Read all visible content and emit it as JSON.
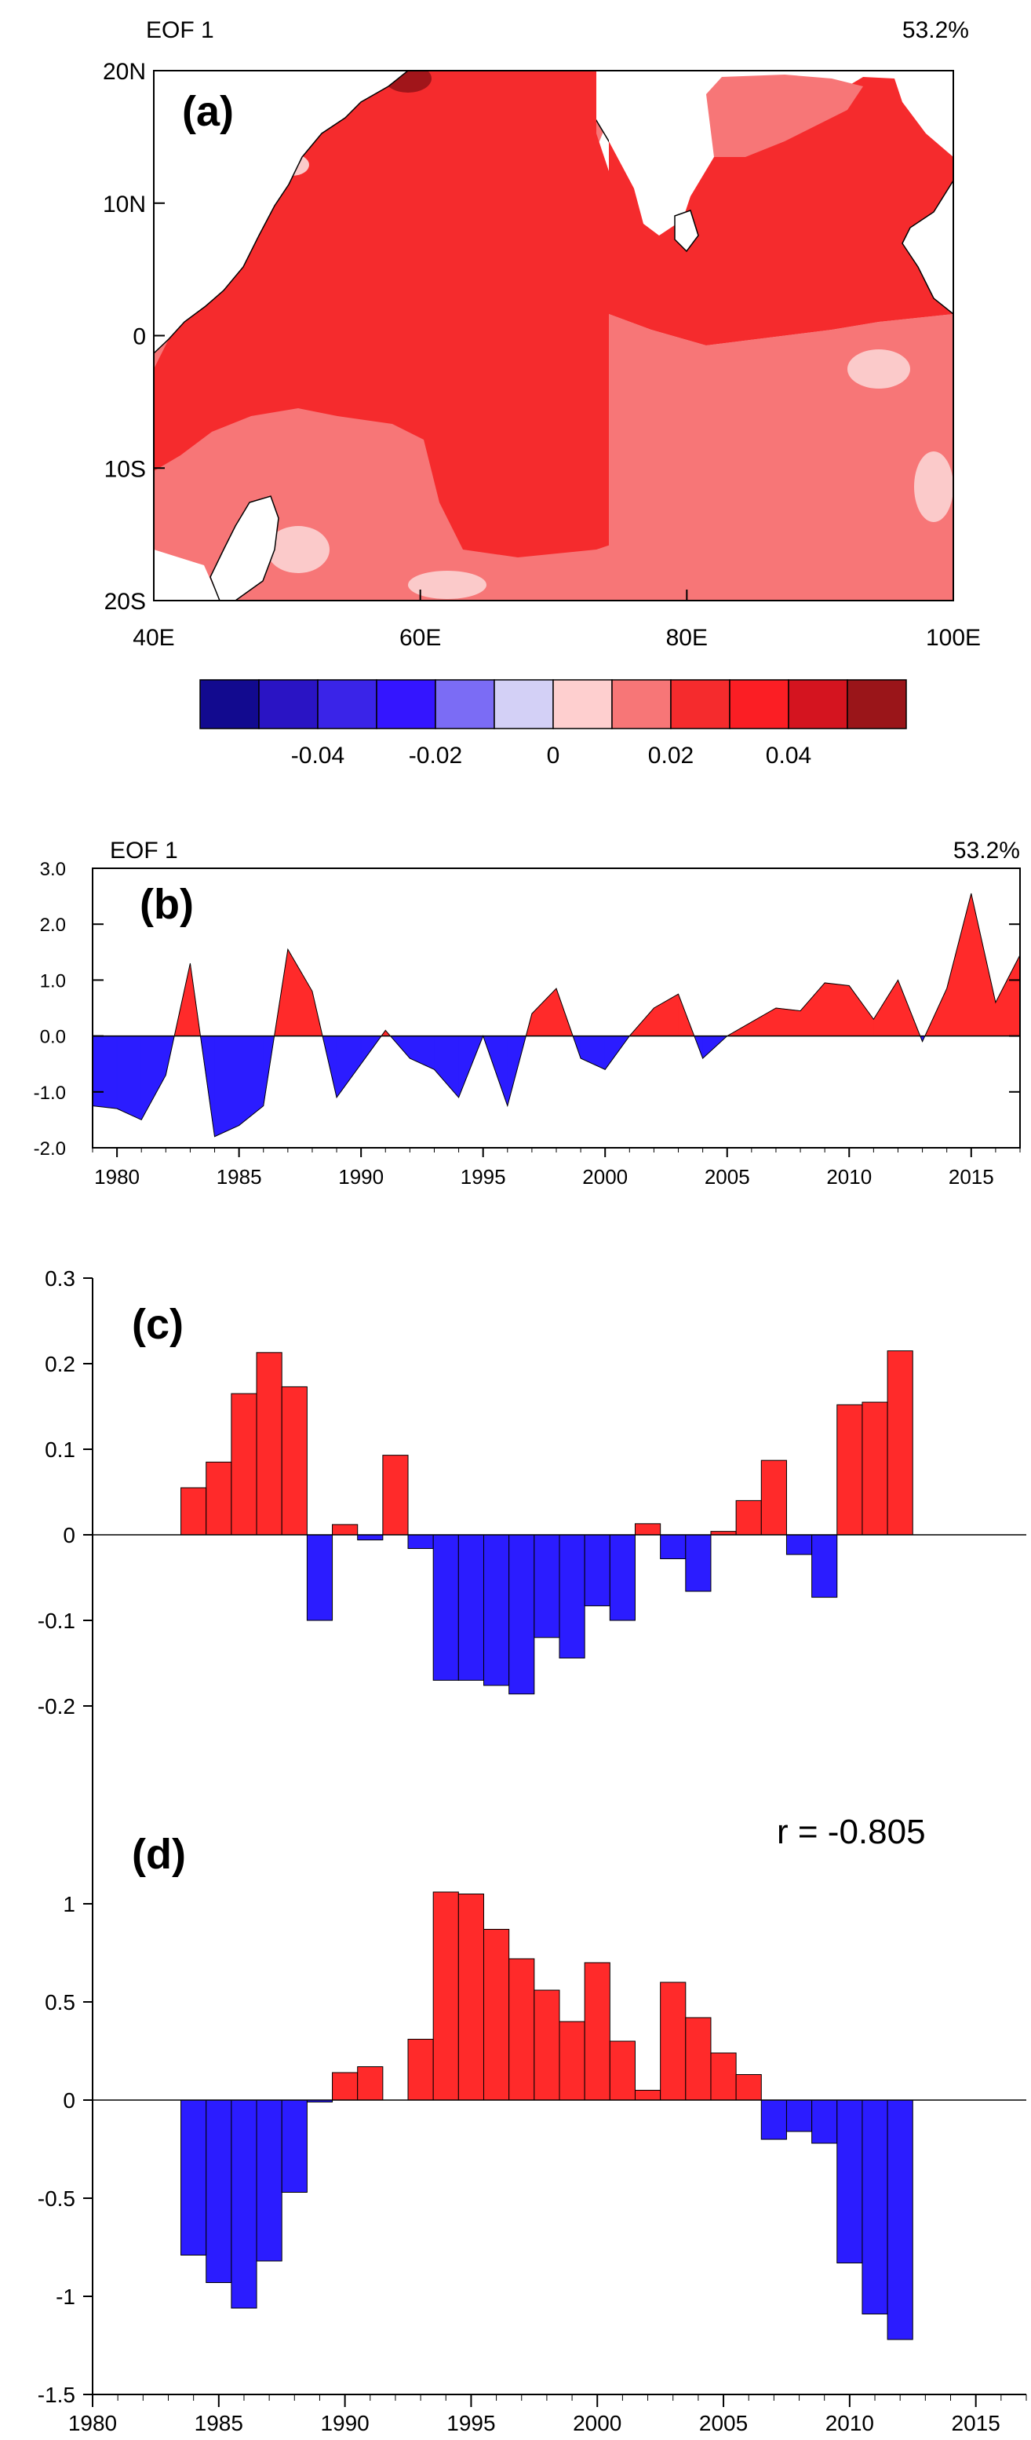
{
  "colors": {
    "positive": "#ff2a2a",
    "negative": "#2b1cff",
    "map_strong": "#f52b2d",
    "map_medium": "#f77677",
    "map_weak": "#fbcaca",
    "map_dark": "#a1151a",
    "land": "#ffffff"
  },
  "chart_data": [
    {
      "panel": "a",
      "type": "heatmap",
      "title": "EOF 1",
      "variance": "53.2%",
      "panel_label": "(a)",
      "x_ticks": [
        "40E",
        "60E",
        "80E",
        "100E"
      ],
      "y_ticks": [
        "20N",
        "10N",
        "0",
        "10S",
        "20S"
      ],
      "xlim": [
        40,
        100
      ],
      "ylim": [
        -20,
        20
      ],
      "colorbar": {
        "levels": [
          -0.05,
          -0.04,
          -0.03,
          -0.02,
          -0.01,
          0,
          0.01,
          0.02,
          0.03,
          0.04,
          0.05
        ],
        "colors": [
          "#120a8f",
          "#2a14c4",
          "#3a24e8",
          "#3415ff",
          "#7b6cf5",
          "#d3d0f6",
          "#fecfcf",
          "#f77677",
          "#f52b2d",
          "#fb1e24",
          "#d4141f",
          "#9a1519"
        ],
        "tick_labels": [
          "-0.04",
          "-0.02",
          "0",
          "0.02",
          "0.04"
        ]
      }
    },
    {
      "panel": "b",
      "type": "area",
      "title": "EOF 1",
      "variance": "53.2%",
      "panel_label": "(b)",
      "x": [
        1979,
        1980,
        1981,
        1982,
        1983,
        1984,
        1985,
        1986,
        1987,
        1988,
        1989,
        1990,
        1991,
        1992,
        1993,
        1994,
        1995,
        1996,
        1997,
        1998,
        1999,
        2000,
        2001,
        2002,
        2003,
        2004,
        2005,
        2006,
        2007,
        2008,
        2009,
        2010,
        2011,
        2012,
        2013,
        2014,
        2015,
        2016,
        2017
      ],
      "values": [
        -1.25,
        -1.3,
        -1.5,
        -0.7,
        1.3,
        -1.8,
        -1.6,
        -1.25,
        1.55,
        0.8,
        -1.1,
        -0.5,
        0.1,
        -0.4,
        -0.6,
        -1.1,
        0.0,
        -1.25,
        0.4,
        0.85,
        -0.4,
        -0.6,
        0.0,
        0.5,
        0.75,
        -0.4,
        0.0,
        0.25,
        0.5,
        0.45,
        0.95,
        0.9,
        0.3,
        1.0,
        -0.1,
        0.85,
        2.55,
        0.6,
        1.45
      ],
      "xlim": [
        1979,
        2017
      ],
      "ylim": [
        -2,
        3
      ],
      "y_ticks": [
        "-2.0",
        "-1.0",
        "0.0",
        "1.0",
        "2.0",
        "3.0"
      ],
      "x_ticks": [
        "1980",
        "1985",
        "1990",
        "1995",
        "2000",
        "2005",
        "2010",
        "2015"
      ]
    },
    {
      "panel": "c",
      "type": "bar",
      "panel_label": "(c)",
      "x": [
        1984,
        1985,
        1986,
        1987,
        1988,
        1989,
        1990,
        1991,
        1992,
        1993,
        1994,
        1995,
        1996,
        1997,
        1998,
        1999,
        2000,
        2001,
        2002,
        2003,
        2004,
        2005,
        2006,
        2007,
        2008,
        2009,
        2010,
        2011,
        2012
      ],
      "values": [
        0.055,
        0.085,
        0.165,
        0.213,
        0.173,
        -0.1,
        0.012,
        -0.006,
        0.093,
        -0.016,
        -0.17,
        -0.17,
        -0.176,
        -0.186,
        -0.12,
        -0.144,
        -0.083,
        -0.1,
        0.013,
        -0.028,
        -0.066,
        0.004,
        0.04,
        0.087,
        -0.023,
        -0.073,
        0.152,
        0.155,
        0.215
      ],
      "xlim": [
        1980,
        2017
      ],
      "ylim": [
        -0.3,
        0.3
      ],
      "y_ticks": [
        "-0.2",
        "-0.1",
        "0",
        "0.1",
        "0.2",
        "0.3"
      ]
    },
    {
      "panel": "d",
      "type": "bar",
      "panel_label": "(d)",
      "annotation": "r = -0.805",
      "x": [
        1984,
        1985,
        1986,
        1987,
        1988,
        1989,
        1990,
        1991,
        1992,
        1993,
        1994,
        1995,
        1996,
        1997,
        1998,
        1999,
        2000,
        2001,
        2002,
        2003,
        2004,
        2005,
        2006,
        2007,
        2008,
        2009,
        2010,
        2011,
        2012
      ],
      "values": [
        -0.79,
        -0.93,
        -1.06,
        -0.82,
        -0.47,
        -0.01,
        0.14,
        0.17,
        0.0,
        0.31,
        1.06,
        1.05,
        0.87,
        0.72,
        0.56,
        0.4,
        0.7,
        0.3,
        0.05,
        0.6,
        0.42,
        0.24,
        0.13,
        -0.2,
        -0.16,
        -0.22,
        -0.83,
        -1.09,
        -1.22
      ],
      "xlim": [
        1980,
        2017
      ],
      "ylim": [
        -1.5,
        1.5
      ],
      "y_ticks": [
        "-1.5",
        "-1",
        "-0.5",
        "0",
        "0.5",
        "1"
      ],
      "x_ticks": [
        "1980",
        "1985",
        "1990",
        "1995",
        "2000",
        "2005",
        "2010",
        "2015"
      ]
    }
  ]
}
